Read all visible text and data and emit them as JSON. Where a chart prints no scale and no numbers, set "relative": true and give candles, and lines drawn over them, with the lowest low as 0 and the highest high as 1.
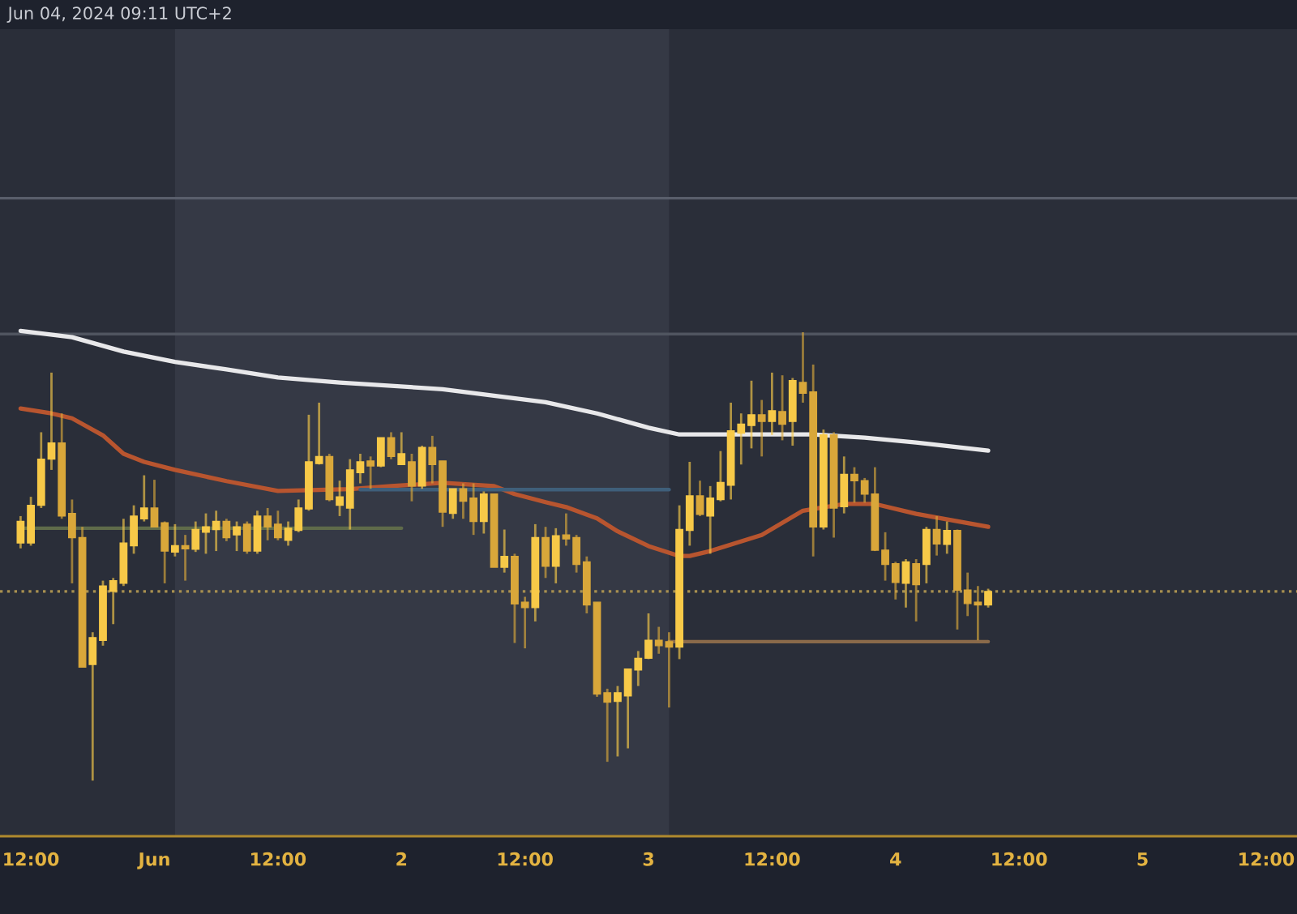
{
  "chart_data": {
    "type": "candlestick",
    "relative": true,
    "annotations": [
      "Jun 04, 2024 09:11 UTC+2"
    ],
    "xlim": [
      "2024-05-31T09:00",
      "2024-06-05T15:00"
    ],
    "xticks": [
      {
        "value": "2024-05-31T12:00",
        "label": "12:00"
      },
      {
        "value": "2024-06-01T00:00",
        "label": "Jun"
      },
      {
        "value": "2024-06-01T12:00",
        "label": "12:00"
      },
      {
        "value": "2024-06-02T00:00",
        "label": "2"
      },
      {
        "value": "2024-06-02T12:00",
        "label": "12:00"
      },
      {
        "value": "2024-06-03T00:00",
        "label": "3"
      },
      {
        "value": "2024-06-03T12:00",
        "label": "12:00"
      },
      {
        "value": "2024-06-04T00:00",
        "label": "4"
      },
      {
        "value": "2024-06-04T12:00",
        "label": "12:00"
      },
      {
        "value": "2024-06-05T00:00",
        "label": "5"
      },
      {
        "value": "2024-06-05T12:00",
        "label": "12:00"
      }
    ],
    "bands": [
      {
        "axis": "x",
        "from": "2024-06-01T02:00",
        "to": "2024-06-03T02:00",
        "color": "#353945"
      }
    ],
    "ref_lines": [
      {
        "axis": "y",
        "value": 1.299,
        "color": "#595e6b"
      },
      {
        "axis": "y",
        "value": 0.996,
        "color": "#505560"
      },
      {
        "axis": "y",
        "value": 0.422,
        "color": "#a89050",
        "line_style": "dotted"
      }
    ],
    "series": [
      {
        "x": [
          "2024-05-31T11:00",
          "2024-05-31T12:00",
          "2024-05-31T13:00",
          "2024-05-31T14:00",
          "2024-05-31T15:00",
          "2024-05-31T16:00",
          "2024-05-31T17:00",
          "2024-05-31T18:00",
          "2024-05-31T19:00",
          "2024-05-31T20:00",
          "2024-05-31T21:00",
          "2024-05-31T22:00",
          "2024-05-31T23:00",
          "2024-06-01T00:00",
          "2024-06-01T01:00",
          "2024-06-01T02:00",
          "2024-06-01T03:00",
          "2024-06-01T04:00",
          "2024-06-01T05:00",
          "2024-06-01T06:00",
          "2024-06-01T07:00",
          "2024-06-01T08:00",
          "2024-06-01T09:00",
          "2024-06-01T10:00",
          "2024-06-01T11:00",
          "2024-06-01T12:00",
          "2024-06-01T13:00",
          "2024-06-01T14:00",
          "2024-06-01T15:00",
          "2024-06-01T16:00",
          "2024-06-01T17:00",
          "2024-06-01T18:00",
          "2024-06-01T19:00",
          "2024-06-01T20:00",
          "2024-06-01T21:00",
          "2024-06-01T22:00",
          "2024-06-01T23:00",
          "2024-06-02T00:00",
          "2024-06-02T01:00",
          "2024-06-02T02:00",
          "2024-06-02T03:00",
          "2024-06-02T04:00",
          "2024-06-02T05:00",
          "2024-06-02T06:00",
          "2024-06-02T07:00",
          "2024-06-02T08:00",
          "2024-06-02T09:00",
          "2024-06-02T10:00",
          "2024-06-02T11:00",
          "2024-06-02T12:00",
          "2024-06-02T13:00",
          "2024-06-02T14:00",
          "2024-06-02T15:00",
          "2024-06-02T16:00",
          "2024-06-02T17:00",
          "2024-06-02T18:00",
          "2024-06-02T19:00",
          "2024-06-02T20:00",
          "2024-06-02T21:00",
          "2024-06-02T22:00",
          "2024-06-02T23:00",
          "2024-06-03T00:00",
          "2024-06-03T01:00",
          "2024-06-03T02:00",
          "2024-06-03T03:00",
          "2024-06-03T04:00",
          "2024-06-03T05:00",
          "2024-06-03T06:00",
          "2024-06-03T07:00",
          "2024-06-03T08:00",
          "2024-06-03T09:00",
          "2024-06-03T10:00",
          "2024-06-03T11:00",
          "2024-06-03T12:00",
          "2024-06-03T13:00",
          "2024-06-03T14:00",
          "2024-06-03T15:00",
          "2024-06-03T16:00",
          "2024-06-03T17:00",
          "2024-06-03T18:00",
          "2024-06-03T19:00",
          "2024-06-03T20:00",
          "2024-06-03T21:00",
          "2024-06-03T22:00",
          "2024-06-03T23:00",
          "2024-06-04T00:00",
          "2024-06-04T01:00",
          "2024-06-04T02:00",
          "2024-06-04T03:00",
          "2024-06-04T04:00",
          "2024-06-04T05:00",
          "2024-06-04T06:00",
          "2024-06-04T07:00",
          "2024-06-04T08:00",
          "2024-06-04T09:00"
        ],
        "colors": [
          "#f7c948",
          "#f7c948",
          "#f7c948",
          "#f7c948",
          "#d9a73a",
          "#d9a73a",
          "#d9a73a",
          "#f7c948",
          "#f7c948",
          "#f7c948",
          "#f7c948",
          "#f7c948",
          "#f7c948",
          "#d9a73a",
          "#d9a73a",
          "#f7c948",
          "#d9a73a",
          "#f7c948",
          "#f7c948",
          "#f7c948",
          "#d9a73a",
          "#f7c948",
          "#d9a73a",
          "#f7c948",
          "#d9a73a",
          "#d9a73a",
          "#f7c948",
          "#f7c948",
          "#f7c948",
          "#f7c948",
          "#d9a73a",
          "#f7c948",
          "#f7c948",
          "#f7c948",
          "#d9a73a",
          "#f7c948",
          "#d9a73a",
          "#f7c948",
          "#d9a73a",
          "#f7c948",
          "#d9a73a",
          "#d9a73a",
          "#f7c948",
          "#d9a73a",
          "#d9a73a",
          "#f7c948",
          "#d9a73a",
          "#f7c948",
          "#d9a73a",
          "#d9a73a",
          "#f7c948",
          "#d9a73a",
          "#f7c948",
          "#d9a73a",
          "#d9a73a",
          "#d9a73a",
          "#d9a73a",
          "#d9a73a",
          "#f7c948",
          "#f7c948",
          "#f7c948",
          "#f7c948",
          "#d9a73a",
          "#d9a73a",
          "#f7c948",
          "#f7c948",
          "#d9a73a",
          "#f7c948",
          "#f7c948",
          "#f7c948",
          "#f7c948",
          "#f7c948",
          "#d9a73a",
          "#f7c948",
          "#d9a73a",
          "#f7c948",
          "#d9a73a",
          "#d9a73a",
          "#f7c948",
          "#d9a73a",
          "#f7c948",
          "#d9a73a",
          "#d9a73a",
          "#d9a73a",
          "#d9a73a",
          "#d9a73a",
          "#f7c948",
          "#d9a73a",
          "#f7c948",
          "#d9a73a",
          "#f7c948",
          "#d9a73a",
          "#d9a73a",
          "#d9a73a",
          "#f7c948"
        ],
        "ohlc": [
          [
            0.53,
            0.59,
            0.518,
            0.578
          ],
          [
            0.53,
            0.633,
            0.524,
            0.614
          ],
          [
            0.614,
            0.777,
            0.608,
            0.717
          ],
          [
            0.717,
            0.91,
            0.693,
            0.753
          ],
          [
            0.753,
            0.819,
            0.584,
            0.59
          ],
          [
            0.596,
            0.627,
            0.44,
            0.542
          ],
          [
            0.542,
            0.566,
            0.253,
            0.253
          ],
          [
            0.259,
            0.331,
            0.0,
            0.319
          ],
          [
            0.313,
            0.446,
            0.301,
            0.434
          ],
          [
            0.422,
            0.452,
            0.349,
            0.446
          ],
          [
            0.44,
            0.584,
            0.434,
            0.53
          ],
          [
            0.524,
            0.614,
            0.506,
            0.59
          ],
          [
            0.584,
            0.681,
            0.578,
            0.608
          ],
          [
            0.608,
            0.671,
            0.566,
            0.566
          ],
          [
            0.575,
            0.578,
            0.44,
            0.512
          ],
          [
            0.51,
            0.572,
            0.5,
            0.524
          ],
          [
            0.524,
            0.548,
            0.446,
            0.517
          ],
          [
            0.516,
            0.578,
            0.51,
            0.56
          ],
          [
            0.554,
            0.596,
            0.506,
            0.566
          ],
          [
            0.56,
            0.602,
            0.512,
            0.578
          ],
          [
            0.578,
            0.584,
            0.534,
            0.542
          ],
          [
            0.548,
            0.578,
            0.512,
            0.566
          ],
          [
            0.572,
            0.578,
            0.506,
            0.512
          ],
          [
            0.512,
            0.602,
            0.506,
            0.59
          ],
          [
            0.59,
            0.608,
            0.536,
            0.566
          ],
          [
            0.572,
            0.602,
            0.536,
            0.542
          ],
          [
            0.536,
            0.578,
            0.524,
            0.563
          ],
          [
            0.558,
            0.627,
            0.554,
            0.608
          ],
          [
            0.606,
            0.816,
            0.602,
            0.711
          ],
          [
            0.707,
            0.843,
            0.705,
            0.723
          ],
          [
            0.723,
            0.729,
            0.623,
            0.627
          ],
          [
            0.614,
            0.669,
            0.59,
            0.633
          ],
          [
            0.608,
            0.717,
            0.56,
            0.693
          ],
          [
            0.687,
            0.729,
            0.663,
            0.711
          ],
          [
            0.713,
            0.723,
            0.651,
            0.702
          ],
          [
            0.702,
            0.765,
            0.699,
            0.765
          ],
          [
            0.765,
            0.777,
            0.717,
            0.723
          ],
          [
            0.705,
            0.777,
            0.705,
            0.729
          ],
          [
            0.711,
            0.729,
            0.623,
            0.657
          ],
          [
            0.657,
            0.747,
            0.651,
            0.743
          ],
          [
            0.743,
            0.769,
            0.663,
            0.705
          ],
          [
            0.713,
            0.713,
            0.566,
            0.599
          ],
          [
            0.596,
            0.651,
            0.584,
            0.651
          ],
          [
            0.651,
            0.663,
            0.584,
            0.623
          ],
          [
            0.63,
            0.663,
            0.548,
            0.578
          ],
          [
            0.578,
            0.645,
            0.551,
            0.639
          ],
          [
            0.639,
            0.639,
            0.476,
            0.476
          ],
          [
            0.476,
            0.56,
            0.464,
            0.5
          ],
          [
            0.5,
            0.506,
            0.307,
            0.394
          ],
          [
            0.398,
            0.41,
            0.295,
            0.386
          ],
          [
            0.386,
            0.572,
            0.355,
            0.542
          ],
          [
            0.542,
            0.566,
            0.452,
            0.478
          ],
          [
            0.478,
            0.563,
            0.44,
            0.546
          ],
          [
            0.548,
            0.596,
            0.524,
            0.539
          ],
          [
            0.542,
            0.548,
            0.464,
            0.482
          ],
          [
            0.488,
            0.5,
            0.373,
            0.392
          ],
          [
            0.398,
            0.398,
            0.187,
            0.193
          ],
          [
            0.196,
            0.205,
            0.042,
            0.175
          ],
          [
            0.177,
            0.211,
            0.054,
            0.196
          ],
          [
            0.189,
            0.249,
            0.072,
            0.249
          ],
          [
            0.247,
            0.289,
            0.211,
            0.273
          ],
          [
            0.273,
            0.373,
            0.271,
            0.313
          ],
          [
            0.313,
            0.343,
            0.283,
            0.301
          ],
          [
            0.31,
            0.331,
            0.163,
            0.298
          ],
          [
            0.298,
            0.614,
            0.271,
            0.56
          ],
          [
            0.558,
            0.711,
            0.524,
            0.635
          ],
          [
            0.635,
            0.669,
            0.59,
            0.594
          ],
          [
            0.59,
            0.657,
            0.506,
            0.63
          ],
          [
            0.627,
            0.735,
            0.623,
            0.665
          ],
          [
            0.659,
            0.843,
            0.627,
            0.78
          ],
          [
            0.775,
            0.819,
            0.705,
            0.795
          ],
          [
            0.792,
            0.892,
            0.741,
            0.816
          ],
          [
            0.816,
            0.849,
            0.723,
            0.801
          ],
          [
            0.801,
            0.91,
            0.771,
            0.825
          ],
          [
            0.823,
            0.904,
            0.759,
            0.795
          ],
          [
            0.801,
            0.898,
            0.747,
            0.892
          ],
          [
            0.888,
            1.0,
            0.843,
            0.864
          ],
          [
            0.867,
            0.928,
            0.5,
            0.566
          ],
          [
            0.566,
            0.783,
            0.56,
            0.771
          ],
          [
            0.771,
            0.777,
            0.542,
            0.608
          ],
          [
            0.611,
            0.723,
            0.596,
            0.683
          ],
          [
            0.683,
            0.699,
            0.62,
            0.669
          ],
          [
            0.669,
            0.675,
            0.62,
            0.639
          ],
          [
            0.639,
            0.699,
            0.512,
            0.514
          ],
          [
            0.514,
            0.554,
            0.446,
            0.482
          ],
          [
            0.484,
            0.488,
            0.404,
            0.442
          ],
          [
            0.44,
            0.494,
            0.386,
            0.488
          ],
          [
            0.484,
            0.494,
            0.355,
            0.437
          ],
          [
            0.482,
            0.566,
            0.44,
            0.56
          ],
          [
            0.56,
            0.59,
            0.502,
            0.528
          ],
          [
            0.527,
            0.578,
            0.506,
            0.558
          ],
          [
            0.558,
            0.56,
            0.337,
            0.425
          ],
          [
            0.425,
            0.464,
            0.367,
            0.395
          ],
          [
            0.398,
            0.434,
            0.313,
            0.392
          ],
          [
            0.392,
            0.428,
            0.386,
            0.422
          ]
        ]
      },
      {
        "type": "line",
        "color": "#e8e8ea",
        "x": [
          "2024-05-31T11:00",
          "2024-05-31T16:00",
          "2024-05-31T21:00",
          "2024-06-01T02:00",
          "2024-06-01T07:00",
          "2024-06-01T12:00",
          "2024-06-01T18:00",
          "2024-06-02T04:00",
          "2024-06-02T14:00",
          "2024-06-02T19:00",
          "2024-06-03T00:00",
          "2024-06-03T03:00",
          "2024-06-03T06:00",
          "2024-06-03T16:00",
          "2024-06-03T21:00",
          "2024-06-04T02:00",
          "2024-06-04T09:00"
        ],
        "values": [
          1.003,
          0.989,
          0.957,
          0.934,
          0.917,
          0.899,
          0.888,
          0.873,
          0.844,
          0.819,
          0.787,
          0.772,
          0.772,
          0.772,
          0.765,
          0.754,
          0.736
        ]
      },
      {
        "type": "line",
        "color": "#b8552f",
        "x": [
          "2024-05-31T11:00",
          "2024-05-31T14:00",
          "2024-05-31T16:00",
          "2024-05-31T19:00",
          "2024-05-31T21:00",
          "2024-05-31T23:00",
          "2024-06-01T02:00",
          "2024-06-01T07:00",
          "2024-06-01T12:00",
          "2024-06-01T19:00",
          "2024-06-01T23:00",
          "2024-06-02T04:00",
          "2024-06-02T09:00",
          "2024-06-02T11:00",
          "2024-06-02T14:00",
          "2024-06-02T16:00",
          "2024-06-02T19:00",
          "2024-06-02T21:00",
          "2024-06-03T00:00",
          "2024-06-03T03:00",
          "2024-06-03T04:00",
          "2024-06-03T06:00",
          "2024-06-03T11:00",
          "2024-06-03T15:00",
          "2024-06-03T19:00",
          "2024-06-03T22:00",
          "2024-06-04T02:00",
          "2024-06-04T09:00"
        ],
        "values": [
          0.83,
          0.819,
          0.808,
          0.77,
          0.729,
          0.711,
          0.693,
          0.668,
          0.646,
          0.65,
          0.657,
          0.664,
          0.657,
          0.639,
          0.621,
          0.61,
          0.585,
          0.556,
          0.523,
          0.501,
          0.501,
          0.512,
          0.548,
          0.602,
          0.617,
          0.617,
          0.595,
          0.566
        ]
      },
      {
        "type": "line",
        "color": "#3f5f7a",
        "x": [
          "2024-06-01T20:00",
          "2024-06-03T02:00"
        ],
        "values": [
          0.649,
          0.649
        ]
      },
      {
        "type": "line",
        "color": "#5f6b4a",
        "x": [
          "2024-05-31T11:00",
          "2024-06-02T00:00"
        ],
        "values": [
          0.563,
          0.563
        ]
      },
      {
        "type": "line",
        "color": "#8a6a4a",
        "x": [
          "2024-06-03T02:00",
          "2024-06-04T09:00"
        ],
        "values": [
          0.31,
          0.31
        ]
      }
    ]
  }
}
